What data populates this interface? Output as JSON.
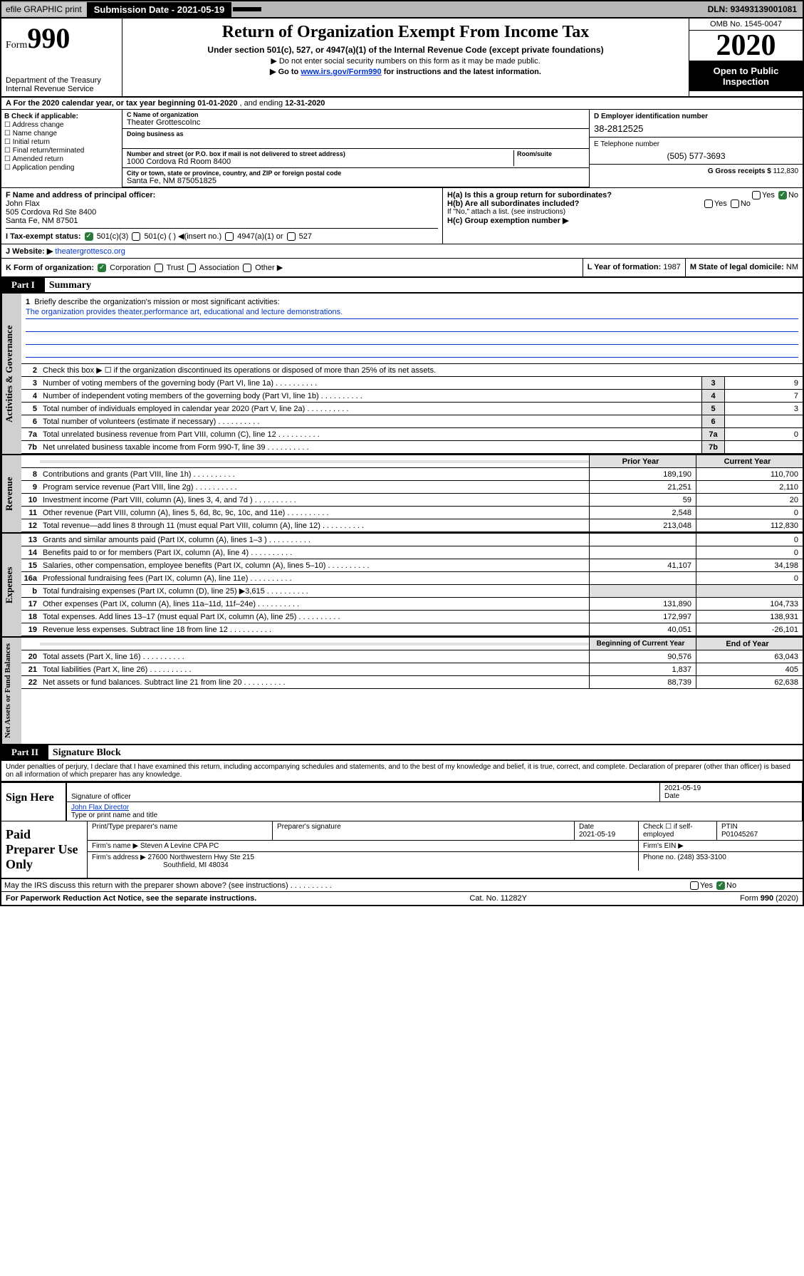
{
  "topbar": {
    "efile": "efile GRAPHIC print",
    "subdate_lbl": "Submission Date - 2021-05-19",
    "dln": "DLN: 93493139001081"
  },
  "header": {
    "form_lbl": "Form",
    "form_num": "990",
    "dept": "Department of the Treasury\nInternal Revenue Service",
    "title": "Return of Organization Exempt From Income Tax",
    "sub1": "Under section 501(c), 527, or 4947(a)(1) of the Internal Revenue Code (except private foundations)",
    "sub2": "▶ Do not enter social security numbers on this form as it may be made public.",
    "sub3_a": "▶ Go to ",
    "sub3_link": "www.irs.gov/Form990",
    "sub3_b": " for instructions and the latest information.",
    "omb": "OMB No. 1545-0047",
    "year": "2020",
    "pub": "Open to Public Inspection"
  },
  "rowA": {
    "text_a": "A For the 2020 calendar year, or tax year beginning ",
    "begin": "01-01-2020",
    "text_b": " , and ending ",
    "end": "12-31-2020"
  },
  "B": {
    "hdr": "B Check if applicable:",
    "items": [
      "Address change",
      "Name change",
      "Initial return",
      "Final return/terminated",
      "Amended return",
      "Application pending"
    ]
  },
  "C": {
    "name_lbl": "C Name of organization",
    "name": "Theater GrottescoInc",
    "dba_lbl": "Doing business as",
    "street_lbl": "Number and street (or P.O. box if mail is not delivered to street address)",
    "room_lbl": "Room/suite",
    "street": "1000 Cordova Rd Room 8400",
    "city_lbl": "City or town, state or province, country, and ZIP or foreign postal code",
    "city": "Santa Fe, NM  875051825"
  },
  "D": {
    "lbl": "D Employer identification number",
    "val": "38-2812525"
  },
  "E": {
    "lbl": "E Telephone number",
    "val": "(505) 577-3693"
  },
  "G": {
    "lbl": "G Gross receipts $ ",
    "val": "112,830"
  },
  "F": {
    "lbl": "F  Name and address of principal officer:",
    "name": "John Flax",
    "addr1": "505 Cordova Rd Ste 8400",
    "addr2": "Santa Fe, NM  87501"
  },
  "H": {
    "a": "H(a)  Is this a group return for subordinates?",
    "b": "H(b)  Are all subordinates included?",
    "note": "If \"No,\" attach a list. (see instructions)",
    "c": "H(c)  Group exemption number ▶",
    "yes": "Yes",
    "no": "No"
  },
  "I": {
    "lbl": "I    Tax-exempt status:",
    "o1": "501(c)(3)",
    "o2": "501(c) ( ) ◀(insert no.)",
    "o3": "4947(a)(1) or",
    "o4": "527"
  },
  "J": {
    "lbl": "J    Website: ▶",
    "val": "theatergrottesco.org"
  },
  "K": {
    "lbl": "K Form of organization:",
    "o1": "Corporation",
    "o2": "Trust",
    "o3": "Association",
    "o4": "Other ▶"
  },
  "L": {
    "lbl": "L Year of formation: ",
    "val": "1987"
  },
  "M": {
    "lbl": "M State of legal domicile: ",
    "val": "NM"
  },
  "partI": {
    "hdr": "Part I",
    "title": "Summary"
  },
  "q1": {
    "num": "1",
    "lbl": "Briefly describe the organization's mission or most significant activities:",
    "text": "The organization provides theater,performance art, educational and lecture demonstrations."
  },
  "q2": {
    "num": "2",
    "lbl": "Check this box ▶ ☐  if the organization discontinued its operations or disposed of more than 25% of its net assets."
  },
  "gov_lines": [
    {
      "n": "3",
      "d": "Number of voting members of the governing body (Part VI, line 1a)",
      "v": "9"
    },
    {
      "n": "4",
      "d": "Number of independent voting members of the governing body (Part VI, line 1b)",
      "v": "7"
    },
    {
      "n": "5",
      "d": "Total number of individuals employed in calendar year 2020 (Part V, line 2a)",
      "v": "3"
    },
    {
      "n": "6",
      "d": "Total number of volunteers (estimate if necessary)",
      "v": ""
    },
    {
      "n": "7a",
      "d": "Total unrelated business revenue from Part VIII, column (C), line 12",
      "v": "0"
    },
    {
      "n": "7b",
      "d": "Net unrelated business taxable income from Form 990-T, line 39",
      "v": ""
    }
  ],
  "col_hdr": {
    "prior": "Prior Year",
    "current": "Current Year",
    "boy": "Beginning of Current Year",
    "eoy": "End of Year"
  },
  "rev_lines": [
    {
      "n": "8",
      "d": "Contributions and grants (Part VIII, line 1h)",
      "p": "189,190",
      "c": "110,700"
    },
    {
      "n": "9",
      "d": "Program service revenue (Part VIII, line 2g)",
      "p": "21,251",
      "c": "2,110"
    },
    {
      "n": "10",
      "d": "Investment income (Part VIII, column (A), lines 3, 4, and 7d )",
      "p": "59",
      "c": "20"
    },
    {
      "n": "11",
      "d": "Other revenue (Part VIII, column (A), lines 5, 6d, 8c, 9c, 10c, and 11e)",
      "p": "2,548",
      "c": "0"
    },
    {
      "n": "12",
      "d": "Total revenue—add lines 8 through 11 (must equal Part VIII, column (A), line 12)",
      "p": "213,048",
      "c": "112,830"
    }
  ],
  "exp_lines": [
    {
      "n": "13",
      "d": "Grants and similar amounts paid (Part IX, column (A), lines 1–3 )",
      "p": "",
      "c": "0"
    },
    {
      "n": "14",
      "d": "Benefits paid to or for members (Part IX, column (A), line 4)",
      "p": "",
      "c": "0"
    },
    {
      "n": "15",
      "d": "Salaries, other compensation, employee benefits (Part IX, column (A), lines 5–10)",
      "p": "41,107",
      "c": "34,198"
    },
    {
      "n": "16a",
      "d": "Professional fundraising fees (Part IX, column (A), line 11e)",
      "p": "",
      "c": "0"
    },
    {
      "n": "b",
      "d": "Total fundraising expenses (Part IX, column (D), line 25) ▶3,615",
      "p": "gray",
      "c": "gray"
    },
    {
      "n": "17",
      "d": "Other expenses (Part IX, column (A), lines 11a–11d, 11f–24e)",
      "p": "131,890",
      "c": "104,733"
    },
    {
      "n": "18",
      "d": "Total expenses. Add lines 13–17 (must equal Part IX, column (A), line 25)",
      "p": "172,997",
      "c": "138,931"
    },
    {
      "n": "19",
      "d": "Revenue less expenses. Subtract line 18 from line 12",
      "p": "40,051",
      "c": "-26,101"
    }
  ],
  "na_lines": [
    {
      "n": "20",
      "d": "Total assets (Part X, line 16)",
      "p": "90,576",
      "c": "63,043"
    },
    {
      "n": "21",
      "d": "Total liabilities (Part X, line 26)",
      "p": "1,837",
      "c": "405"
    },
    {
      "n": "22",
      "d": "Net assets or fund balances. Subtract line 21 from line 20",
      "p": "88,739",
      "c": "62,638"
    }
  ],
  "vtabs": {
    "gov": "Activities & Governance",
    "rev": "Revenue",
    "exp": "Expenses",
    "na": "Net Assets or Fund Balances"
  },
  "partII": {
    "hdr": "Part II",
    "title": "Signature Block",
    "decl": "Under penalties of perjury, I declare that I have examined this return, including accompanying schedules and statements, and to the best of my knowledge and belief, it is true, correct, and complete. Declaration of preparer (other than officer) is based on all information of which preparer has any knowledge."
  },
  "sign": {
    "lbl": "Sign Here",
    "sig_lbl": "Signature of officer",
    "date": "2021-05-19",
    "date_lbl": "Date",
    "name": "John Flax  Director",
    "name_lbl": "Type or print name and title"
  },
  "prep": {
    "lbl": "Paid Preparer Use Only",
    "c1": "Print/Type preparer's name",
    "c2": "Preparer's signature",
    "c3": "Date",
    "c3v": "2021-05-19",
    "c4": "Check ☐ if self-employed",
    "c5": "PTIN",
    "c5v": "P01045267",
    "firm_lbl": "Firm's name   ▶",
    "firm": "Steven A Levine CPA PC",
    "ein_lbl": "Firm's EIN ▶",
    "addr_lbl": "Firm's address ▶",
    "addr1": "27600 Northwestern Hwy Ste 215",
    "addr2": "Southfield, MI  48034",
    "phone_lbl": "Phone no. ",
    "phone": "(248) 353-3100"
  },
  "discuss": {
    "lbl": "May the IRS discuss this return with the preparer shown above? (see instructions)",
    "yes": "Yes",
    "no": "No"
  },
  "footer": {
    "left": "For Paperwork Reduction Act Notice, see the separate instructions.",
    "mid": "Cat. No. 11282Y",
    "right": "Form 990 (2020)"
  }
}
